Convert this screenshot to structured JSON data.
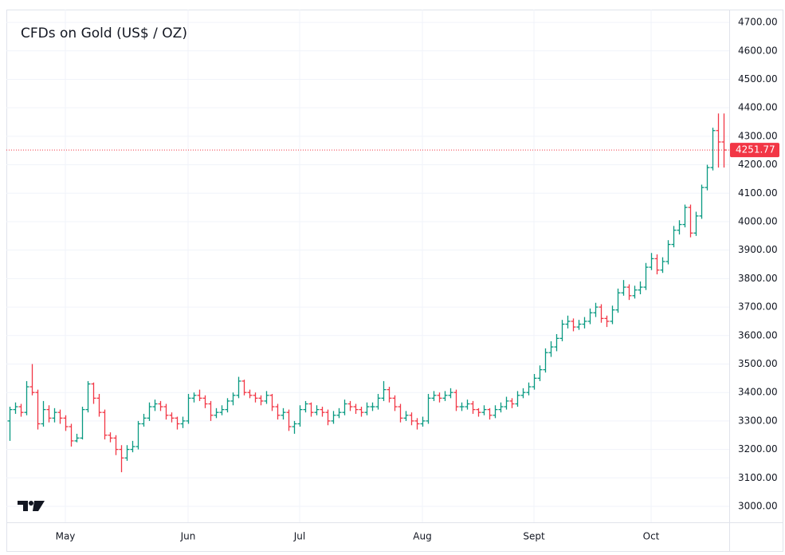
{
  "chart_data": {
    "type": "ohlc",
    "title": "CFDs on Gold (US$ / OZ)",
    "up_color": "#089981",
    "down_color": "#f23645",
    "grid": true,
    "ylim": [
      2944,
      4745
    ],
    "yticks": [
      {
        "value": 3000,
        "label": "3000.00"
      },
      {
        "value": 3100,
        "label": "3100.00"
      },
      {
        "value": 3200,
        "label": "3200.00"
      },
      {
        "value": 3300,
        "label": "3300.00"
      },
      {
        "value": 3400,
        "label": "3400.00"
      },
      {
        "value": 3500,
        "label": "3500.00"
      },
      {
        "value": 3600,
        "label": "3600.00"
      },
      {
        "value": 3700,
        "label": "3700.00"
      },
      {
        "value": 3800,
        "label": "3800.00"
      },
      {
        "value": 3900,
        "label": "3900.00"
      },
      {
        "value": 4000,
        "label": "4000.00"
      },
      {
        "value": 4100,
        "label": "4100.00"
      },
      {
        "value": 4200,
        "label": "4200.00"
      },
      {
        "value": 4300,
        "label": "4300.00"
      },
      {
        "value": 4400,
        "label": "4400.00"
      },
      {
        "value": 4500,
        "label": "4500.00"
      },
      {
        "value": 4600,
        "label": "4600.00"
      },
      {
        "value": 4700,
        "label": "4700.00"
      }
    ],
    "categories": [
      null,
      null,
      null,
      null,
      null,
      null,
      null,
      null,
      null,
      null,
      "May",
      null,
      null,
      null,
      null,
      null,
      null,
      null,
      null,
      null,
      null,
      null,
      null,
      null,
      null,
      null,
      null,
      null,
      null,
      null,
      null,
      null,
      "Jun",
      null,
      null,
      null,
      null,
      null,
      null,
      null,
      null,
      null,
      null,
      null,
      null,
      null,
      null,
      null,
      null,
      null,
      null,
      null,
      "Jul",
      null,
      null,
      null,
      null,
      null,
      null,
      null,
      null,
      null,
      null,
      null,
      null,
      null,
      null,
      null,
      null,
      null,
      null,
      null,
      null,
      null,
      "Aug",
      null,
      null,
      null,
      null,
      null,
      null,
      null,
      null,
      null,
      null,
      null,
      null,
      null,
      null,
      null,
      null,
      null,
      null,
      null,
      "Sept",
      null,
      null,
      null,
      null,
      null,
      null,
      null,
      null,
      null,
      null,
      null,
      null,
      null,
      null,
      null,
      null,
      null,
      null,
      null,
      null,
      "Oct",
      null,
      null,
      null,
      null,
      null,
      null,
      null,
      null,
      null,
      null,
      null,
      null,
      null
    ],
    "ohlc": [
      [
        3300,
        3350,
        3230,
        3340
      ],
      [
        3340,
        3365,
        3325,
        3350
      ],
      [
        3350,
        3360,
        3315,
        3330
      ],
      [
        3330,
        3440,
        3320,
        3420
      ],
      [
        3420,
        3500,
        3390,
        3400
      ],
      [
        3400,
        3410,
        3270,
        3290
      ],
      [
        3290,
        3370,
        3280,
        3340
      ],
      [
        3340,
        3355,
        3295,
        3310
      ],
      [
        3310,
        3345,
        3295,
        3330
      ],
      [
        3330,
        3340,
        3290,
        3310
      ],
      [
        3310,
        3320,
        3265,
        3280
      ],
      [
        3280,
        3290,
        3210,
        3230
      ],
      [
        3230,
        3255,
        3225,
        3240
      ],
      [
        3240,
        3350,
        3235,
        3340
      ],
      [
        3340,
        3440,
        3330,
        3430
      ],
      [
        3430,
        3435,
        3360,
        3380
      ],
      [
        3380,
        3395,
        3315,
        3330
      ],
      [
        3330,
        3340,
        3235,
        3250
      ],
      [
        3250,
        3260,
        3225,
        3240
      ],
      [
        3240,
        3250,
        3180,
        3200
      ],
      [
        3200,
        3215,
        3120,
        3170
      ],
      [
        3170,
        3215,
        3160,
        3200
      ],
      [
        3200,
        3230,
        3190,
        3210
      ],
      [
        3210,
        3300,
        3200,
        3290
      ],
      [
        3290,
        3325,
        3280,
        3310
      ],
      [
        3310,
        3365,
        3300,
        3350
      ],
      [
        3350,
        3375,
        3335,
        3360
      ],
      [
        3360,
        3370,
        3335,
        3350
      ],
      [
        3350,
        3360,
        3305,
        3320
      ],
      [
        3320,
        3330,
        3295,
        3310
      ],
      [
        3310,
        3315,
        3270,
        3290
      ],
      [
        3290,
        3315,
        3275,
        3300
      ],
      [
        3300,
        3395,
        3290,
        3380
      ],
      [
        3380,
        3400,
        3365,
        3390
      ],
      [
        3390,
        3410,
        3370,
        3380
      ],
      [
        3380,
        3390,
        3345,
        3360
      ],
      [
        3360,
        3370,
        3300,
        3320
      ],
      [
        3320,
        3345,
        3310,
        3330
      ],
      [
        3330,
        3355,
        3320,
        3340
      ],
      [
        3340,
        3380,
        3330,
        3370
      ],
      [
        3370,
        3400,
        3355,
        3390
      ],
      [
        3390,
        3455,
        3380,
        3440
      ],
      [
        3440,
        3445,
        3390,
        3400
      ],
      [
        3400,
        3410,
        3380,
        3390
      ],
      [
        3390,
        3400,
        3365,
        3380
      ],
      [
        3380,
        3390,
        3355,
        3370
      ],
      [
        3370,
        3405,
        3360,
        3390
      ],
      [
        3390,
        3395,
        3335,
        3350
      ],
      [
        3350,
        3360,
        3305,
        3320
      ],
      [
        3320,
        3345,
        3305,
        3330
      ],
      [
        3330,
        3340,
        3265,
        3280
      ],
      [
        3280,
        3300,
        3255,
        3290
      ],
      [
        3290,
        3355,
        3280,
        3340
      ],
      [
        3340,
        3370,
        3330,
        3360
      ],
      [
        3360,
        3365,
        3315,
        3330
      ],
      [
        3330,
        3355,
        3320,
        3340
      ],
      [
        3340,
        3350,
        3315,
        3330
      ],
      [
        3330,
        3340,
        3285,
        3300
      ],
      [
        3300,
        3335,
        3290,
        3320
      ],
      [
        3320,
        3345,
        3310,
        3330
      ],
      [
        3330,
        3375,
        3320,
        3360
      ],
      [
        3360,
        3370,
        3335,
        3350
      ],
      [
        3350,
        3360,
        3325,
        3340
      ],
      [
        3340,
        3350,
        3315,
        3330
      ],
      [
        3330,
        3365,
        3320,
        3350
      ],
      [
        3350,
        3365,
        3335,
        3350
      ],
      [
        3350,
        3395,
        3340,
        3380
      ],
      [
        3380,
        3440,
        3370,
        3410
      ],
      [
        3410,
        3420,
        3365,
        3380
      ],
      [
        3380,
        3390,
        3335,
        3350
      ],
      [
        3350,
        3360,
        3295,
        3310
      ],
      [
        3310,
        3335,
        3300,
        3320
      ],
      [
        3320,
        3330,
        3285,
        3300
      ],
      [
        3300,
        3310,
        3270,
        3290
      ],
      [
        3290,
        3315,
        3280,
        3300
      ],
      [
        3300,
        3395,
        3290,
        3380
      ],
      [
        3380,
        3405,
        3370,
        3390
      ],
      [
        3390,
        3400,
        3365,
        3380
      ],
      [
        3380,
        3405,
        3370,
        3390
      ],
      [
        3390,
        3415,
        3380,
        3400
      ],
      [
        3400,
        3410,
        3335,
        3350
      ],
      [
        3350,
        3365,
        3335,
        3350
      ],
      [
        3350,
        3375,
        3340,
        3360
      ],
      [
        3360,
        3370,
        3325,
        3340
      ],
      [
        3340,
        3345,
        3315,
        3330
      ],
      [
        3330,
        3355,
        3320,
        3340
      ],
      [
        3340,
        3345,
        3305,
        3320
      ],
      [
        3320,
        3355,
        3310,
        3340
      ],
      [
        3340,
        3365,
        3330,
        3350
      ],
      [
        3350,
        3385,
        3340,
        3370
      ],
      [
        3370,
        3380,
        3345,
        3360
      ],
      [
        3360,
        3405,
        3350,
        3390
      ],
      [
        3390,
        3415,
        3380,
        3400
      ],
      [
        3400,
        3435,
        3390,
        3420
      ],
      [
        3420,
        3465,
        3410,
        3450
      ],
      [
        3450,
        3495,
        3440,
        3480
      ],
      [
        3480,
        3555,
        3470,
        3540
      ],
      [
        3540,
        3580,
        3525,
        3560
      ],
      [
        3560,
        3605,
        3545,
        3590
      ],
      [
        3590,
        3655,
        3580,
        3640
      ],
      [
        3640,
        3670,
        3625,
        3650
      ],
      [
        3650,
        3660,
        3615,
        3630
      ],
      [
        3630,
        3655,
        3620,
        3640
      ],
      [
        3640,
        3665,
        3625,
        3650
      ],
      [
        3650,
        3695,
        3640,
        3680
      ],
      [
        3680,
        3715,
        3665,
        3700
      ],
      [
        3700,
        3710,
        3645,
        3660
      ],
      [
        3660,
        3670,
        3630,
        3650
      ],
      [
        3650,
        3705,
        3640,
        3690
      ],
      [
        3690,
        3765,
        3680,
        3750
      ],
      [
        3750,
        3795,
        3740,
        3770
      ],
      [
        3770,
        3780,
        3725,
        3740
      ],
      [
        3740,
        3775,
        3730,
        3760
      ],
      [
        3760,
        3790,
        3745,
        3770
      ],
      [
        3770,
        3855,
        3760,
        3840
      ],
      [
        3840,
        3890,
        3830,
        3870
      ],
      [
        3870,
        3885,
        3815,
        3830
      ],
      [
        3830,
        3875,
        3820,
        3860
      ],
      [
        3860,
        3935,
        3850,
        3920
      ],
      [
        3920,
        3985,
        3910,
        3970
      ],
      [
        3970,
        4005,
        3955,
        3990
      ],
      [
        3990,
        4060,
        3980,
        4050
      ],
      [
        4050,
        4060,
        3945,
        3960
      ],
      [
        3960,
        4035,
        3950,
        4020
      ],
      [
        4020,
        4130,
        4010,
        4120
      ],
      [
        4120,
        4200,
        4110,
        4190
      ],
      [
        4190,
        4330,
        4180,
        4320
      ],
      [
        4320,
        4380,
        4190,
        4280
      ],
      [
        4280,
        4380,
        4190,
        4251.77
      ]
    ]
  }
}
